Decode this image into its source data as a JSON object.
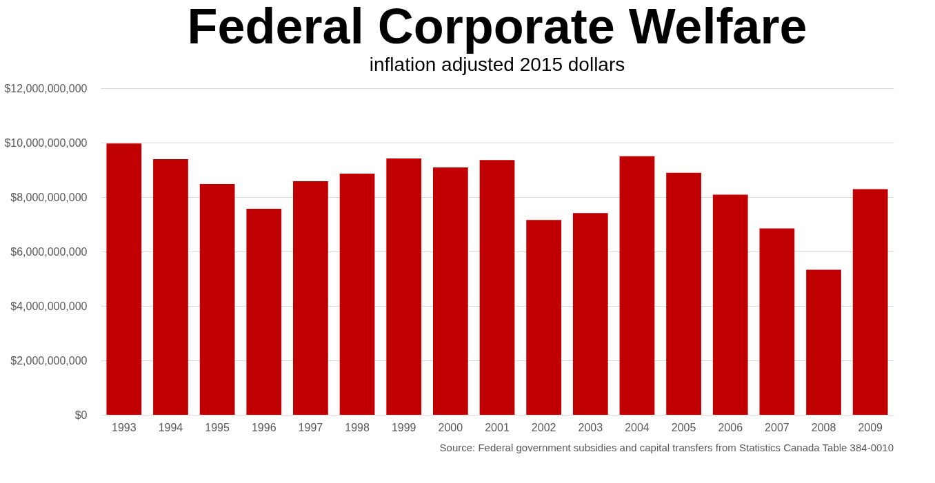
{
  "chart_data": {
    "type": "bar",
    "title": "Federal Corporate Welfare",
    "subtitle": "inflation adjusted 2015 dollars",
    "categories": [
      "1993",
      "1994",
      "1995",
      "1996",
      "1997",
      "1998",
      "1999",
      "2000",
      "2001",
      "2002",
      "2003",
      "2004",
      "2005",
      "2006",
      "2007",
      "2008",
      "2009"
    ],
    "values": [
      9970000000,
      9390000000,
      8480000000,
      7570000000,
      8580000000,
      8860000000,
      9420000000,
      9090000000,
      9360000000,
      7160000000,
      7410000000,
      9500000000,
      8890000000,
      8090000000,
      6850000000,
      5330000000,
      8290000000
    ],
    "color": "#c00000",
    "ylim": [
      0,
      12000000000
    ],
    "yticks": [
      {
        "value": 0,
        "label": "$0"
      },
      {
        "value": 2000000000,
        "label": "$2,000,000,000"
      },
      {
        "value": 4000000000,
        "label": "$4,000,000,000"
      },
      {
        "value": 6000000000,
        "label": "$6,000,000,000"
      },
      {
        "value": 8000000000,
        "label": "$8,000,000,000"
      },
      {
        "value": 10000000000,
        "label": "$10,000,000,000"
      },
      {
        "value": 12000000000,
        "label": "$12,000,000,000"
      }
    ],
    "grid": "y",
    "annotations": [
      "Source:  Federal government  subsidies and capital transfers from Statistics Canada Table 384-0010"
    ]
  }
}
